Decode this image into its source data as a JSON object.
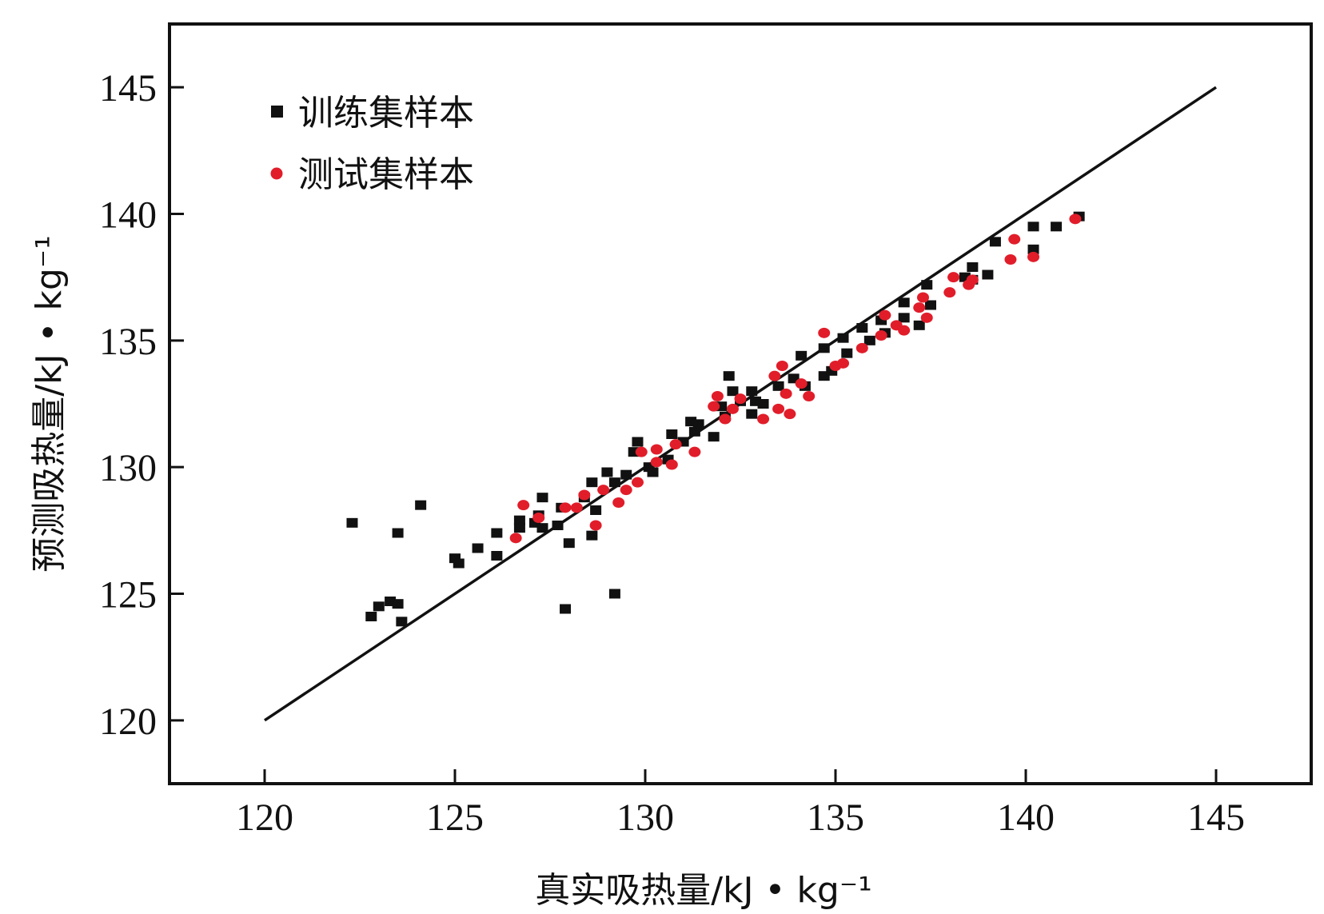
{
  "chart_data": {
    "type": "scatter",
    "xlabel": "真实吸热量/kJ • kg⁻¹",
    "ylabel": "预测吸热量/kJ • kg⁻¹",
    "xlim": [
      117.5,
      147.5
    ],
    "ylim": [
      117.5,
      147.5
    ],
    "xticks": [
      "120",
      "125",
      "130",
      "135",
      "140",
      "145"
    ],
    "yticks": [
      "120",
      "125",
      "130",
      "135",
      "140",
      "145"
    ],
    "grid": false,
    "legend_position": "top-left",
    "reference_line": {
      "name": "y = x",
      "x": [
        120,
        145
      ],
      "y": [
        120,
        145
      ]
    },
    "series": [
      {
        "name": "训练集样本",
        "marker": "square",
        "color": "#111111",
        "points": [
          [
            122.3,
            127.8
          ],
          [
            122.8,
            124.1
          ],
          [
            123.0,
            124.5
          ],
          [
            123.3,
            124.7
          ],
          [
            123.5,
            124.6
          ],
          [
            123.5,
            127.4
          ],
          [
            123.6,
            123.9
          ],
          [
            124.1,
            128.5
          ],
          [
            125.0,
            126.4
          ],
          [
            125.1,
            126.2
          ],
          [
            125.6,
            126.8
          ],
          [
            126.1,
            127.4
          ],
          [
            126.1,
            126.5
          ],
          [
            126.7,
            127.9
          ],
          [
            126.7,
            127.6
          ],
          [
            127.1,
            127.8
          ],
          [
            127.2,
            128.1
          ],
          [
            127.3,
            128.8
          ],
          [
            127.3,
            127.6
          ],
          [
            127.7,
            127.7
          ],
          [
            127.8,
            128.4
          ],
          [
            127.9,
            124.4
          ],
          [
            128.0,
            127.0
          ],
          [
            128.4,
            128.8
          ],
          [
            128.6,
            129.4
          ],
          [
            128.6,
            127.3
          ],
          [
            128.7,
            128.3
          ],
          [
            129.0,
            129.8
          ],
          [
            129.2,
            129.4
          ],
          [
            129.2,
            125.0
          ],
          [
            129.5,
            129.7
          ],
          [
            129.7,
            130.6
          ],
          [
            129.8,
            131.0
          ],
          [
            130.1,
            130.0
          ],
          [
            130.2,
            129.8
          ],
          [
            130.6,
            130.3
          ],
          [
            130.7,
            131.3
          ],
          [
            131.0,
            131.0
          ],
          [
            131.2,
            131.8
          ],
          [
            131.3,
            131.4
          ],
          [
            131.4,
            131.7
          ],
          [
            131.8,
            131.2
          ],
          [
            132.0,
            132.4
          ],
          [
            132.1,
            132.0
          ],
          [
            132.2,
            133.6
          ],
          [
            132.3,
            133.0
          ],
          [
            132.5,
            132.6
          ],
          [
            132.8,
            133.0
          ],
          [
            132.8,
            132.1
          ],
          [
            132.9,
            132.6
          ],
          [
            133.1,
            132.5
          ],
          [
            133.5,
            133.2
          ],
          [
            133.9,
            133.5
          ],
          [
            134.1,
            134.4
          ],
          [
            134.2,
            133.2
          ],
          [
            134.7,
            134.7
          ],
          [
            134.7,
            133.6
          ],
          [
            134.9,
            133.8
          ],
          [
            135.2,
            135.1
          ],
          [
            135.3,
            134.5
          ],
          [
            135.7,
            135.5
          ],
          [
            135.9,
            135.0
          ],
          [
            136.2,
            135.8
          ],
          [
            136.3,
            135.3
          ],
          [
            136.8,
            136.5
          ],
          [
            136.8,
            135.9
          ],
          [
            137.2,
            135.6
          ],
          [
            137.4,
            137.2
          ],
          [
            137.5,
            136.4
          ],
          [
            138.4,
            137.5
          ],
          [
            138.6,
            137.9
          ],
          [
            138.6,
            137.4
          ],
          [
            139.0,
            137.6
          ],
          [
            139.2,
            138.9
          ],
          [
            140.2,
            139.5
          ],
          [
            140.2,
            138.6
          ],
          [
            140.8,
            139.5
          ],
          [
            141.4,
            139.9
          ]
        ]
      },
      {
        "name": "测试集样本",
        "marker": "circle",
        "color": "#e11d2a",
        "points": [
          [
            126.6,
            127.2
          ],
          [
            126.8,
            128.5
          ],
          [
            127.2,
            128.0
          ],
          [
            127.9,
            128.4
          ],
          [
            128.2,
            128.4
          ],
          [
            128.4,
            128.9
          ],
          [
            128.7,
            127.7
          ],
          [
            128.9,
            129.1
          ],
          [
            129.3,
            128.6
          ],
          [
            129.5,
            129.1
          ],
          [
            129.8,
            129.4
          ],
          [
            129.9,
            130.6
          ],
          [
            130.3,
            130.7
          ],
          [
            130.3,
            130.2
          ],
          [
            130.7,
            130.1
          ],
          [
            130.8,
            130.9
          ],
          [
            131.3,
            130.6
          ],
          [
            131.8,
            132.4
          ],
          [
            131.9,
            132.8
          ],
          [
            132.1,
            131.9
          ],
          [
            132.3,
            132.3
          ],
          [
            132.5,
            132.7
          ],
          [
            133.1,
            131.9
          ],
          [
            133.4,
            133.6
          ],
          [
            133.5,
            132.3
          ],
          [
            133.6,
            134.0
          ],
          [
            133.7,
            132.9
          ],
          [
            133.8,
            132.1
          ],
          [
            134.1,
            133.3
          ],
          [
            134.3,
            132.8
          ],
          [
            134.7,
            135.3
          ],
          [
            135.0,
            134.0
          ],
          [
            135.2,
            134.1
          ],
          [
            135.7,
            134.7
          ],
          [
            136.2,
            135.2
          ],
          [
            136.3,
            136.0
          ],
          [
            136.6,
            135.6
          ],
          [
            136.8,
            135.4
          ],
          [
            137.2,
            136.3
          ],
          [
            137.3,
            136.7
          ],
          [
            137.4,
            135.9
          ],
          [
            138.0,
            136.9
          ],
          [
            138.1,
            137.5
          ],
          [
            138.5,
            137.2
          ],
          [
            138.6,
            137.4
          ],
          [
            139.6,
            138.2
          ],
          [
            139.7,
            139.0
          ],
          [
            140.2,
            138.3
          ],
          [
            141.3,
            139.8
          ]
        ]
      }
    ]
  }
}
